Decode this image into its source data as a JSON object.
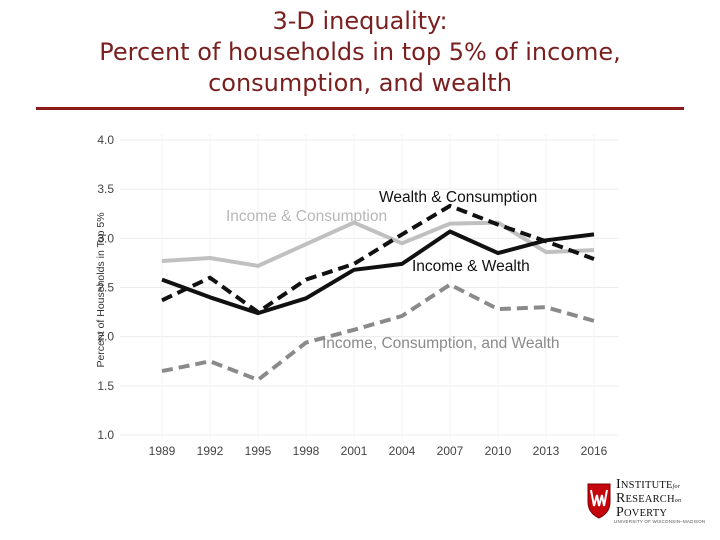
{
  "title": {
    "line1": "3-D inequality:",
    "line2": "Percent of households in top 5% of income,",
    "line3": "consumption, and wealth"
  },
  "colors": {
    "title": "#7a1f1f",
    "rule": "#8b1a1a",
    "black_series": "#111111",
    "light_gray_series": "#c0c0c0",
    "dark_gray_series": "#8a8a8a"
  },
  "logo": {
    "line1a": "I",
    "line1b": "NSTITUTE",
    "line1c": "for",
    "line2a": "R",
    "line2b": "ESEARCH",
    "line2c": "on",
    "line3a": "P",
    "line3b": "OVERTY",
    "sub": "UNIVERSITY OF WISCONSIN–MADISON"
  },
  "chart_data": {
    "type": "line",
    "title": "",
    "xlabel": "",
    "ylabel": "Percent of Households in Top 5%",
    "x": [
      "1989",
      "1992",
      "1995",
      "1998",
      "2001",
      "2004",
      "2007",
      "2010",
      "2013",
      "2016"
    ],
    "ylim": [
      1.0,
      4.0
    ],
    "yticks": [
      "1.0",
      "1.5",
      "2.0",
      "2.5",
      "3.0",
      "3.5",
      "4.0"
    ],
    "grid": true,
    "legend": "direct labels on lines",
    "series": [
      {
        "name": "Income & Consumption",
        "style": "solid",
        "color": "#c0c0c0",
        "values": [
          2.77,
          2.8,
          2.72,
          2.94,
          3.16,
          2.95,
          3.15,
          3.16,
          2.86,
          2.88
        ]
      },
      {
        "name": "Wealth & Consumption",
        "style": "dashed",
        "color": "#111111",
        "values": [
          2.37,
          2.6,
          2.25,
          2.58,
          2.74,
          3.04,
          3.33,
          3.14,
          2.97,
          2.79
        ]
      },
      {
        "name": "Income & Wealth",
        "style": "solid",
        "color": "#111111",
        "values": [
          2.58,
          2.4,
          2.24,
          2.39,
          2.68,
          2.74,
          3.07,
          2.85,
          2.98,
          3.04
        ]
      },
      {
        "name": "Income, Consumption, and Wealth",
        "style": "dashed",
        "color": "#8a8a8a",
        "values": [
          1.65,
          1.75,
          1.56,
          1.94,
          2.07,
          2.21,
          2.53,
          2.28,
          2.3,
          2.16
        ]
      }
    ]
  }
}
